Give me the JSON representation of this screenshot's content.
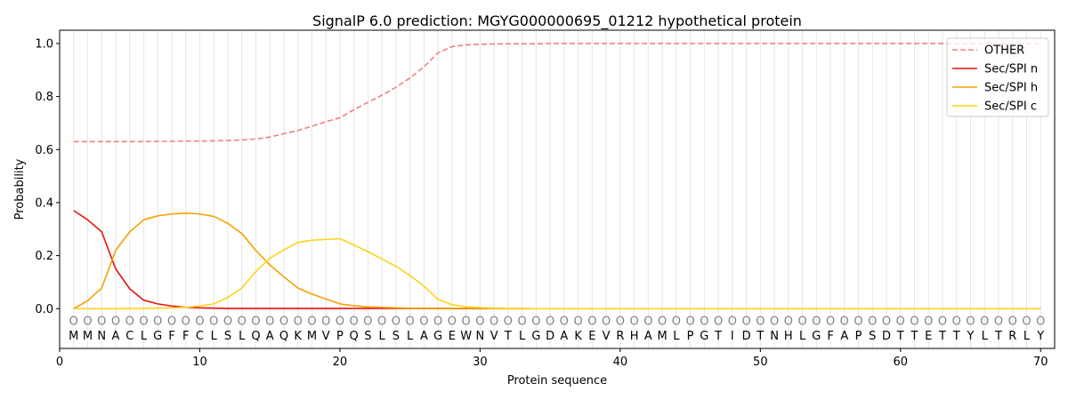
{
  "chart_data": {
    "type": "line",
    "title": "SignalP 6.0 prediction: MGYG000000695_01212 hypothetical protein",
    "xlabel": "Protein sequence",
    "ylabel": "Probability",
    "xlim": [
      0,
      71
    ],
    "ylim": [
      -0.15,
      1.05
    ],
    "x_ticks": [
      0,
      10,
      20,
      30,
      40,
      50,
      60,
      70
    ],
    "x_tick_labels": [
      "0",
      "10",
      "20",
      "30",
      "40",
      "50",
      "60",
      "70"
    ],
    "y_ticks": [
      0.0,
      0.2,
      0.4,
      0.6,
      0.8,
      1.0
    ],
    "y_tick_labels": [
      "0.0",
      "0.2",
      "0.4",
      "0.6",
      "0.8",
      "1.0"
    ],
    "legend_position": "top-right",
    "grid": "vertical lines at each residue position",
    "sequence": [
      "M",
      "M",
      "N",
      "A",
      "C",
      "L",
      "G",
      "F",
      "F",
      "C",
      "L",
      "S",
      "L",
      "Q",
      "A",
      "Q",
      "K",
      "M",
      "V",
      "P",
      "Q",
      "S",
      "L",
      "S",
      "L",
      "A",
      "G",
      "E",
      "W",
      "N",
      "V",
      "T",
      "L",
      "G",
      "D",
      "A",
      "K",
      "E",
      "V",
      "R",
      "H",
      "A",
      "M",
      "L",
      "P",
      "G",
      "T",
      "I",
      "D",
      "T",
      "N",
      "H",
      "L",
      "G",
      "F",
      "A",
      "P",
      "S",
      "D",
      "T",
      "T",
      "E",
      "T",
      "T",
      "Y",
      "L",
      "T",
      "R",
      "L",
      "Y"
    ],
    "markers": "O",
    "marker_y": -0.045,
    "series": [
      {
        "name": "OTHER",
        "color": "#f08080",
        "style": "dashed",
        "values": [
          0.63,
          0.63,
          0.63,
          0.63,
          0.63,
          0.63,
          0.631,
          0.631,
          0.632,
          0.632,
          0.633,
          0.634,
          0.636,
          0.64,
          0.647,
          0.66,
          0.672,
          0.688,
          0.705,
          0.72,
          0.75,
          0.778,
          0.805,
          0.835,
          0.87,
          0.912,
          0.965,
          0.988,
          0.995,
          0.997,
          0.998,
          0.999,
          0.999,
          0.999,
          1.0,
          1.0,
          1.0,
          1.0,
          1.0,
          1.0,
          1.0,
          1.0,
          1.0,
          1.0,
          1.0,
          1.0,
          1.0,
          1.0,
          1.0,
          1.0,
          1.0,
          1.0,
          1.0,
          1.0,
          1.0,
          1.0,
          1.0,
          1.0,
          1.0,
          1.0,
          1.0,
          1.0,
          1.0,
          1.0,
          1.0,
          1.0,
          1.0,
          1.0,
          1.0,
          1.0
        ]
      },
      {
        "name": "Sec/SPI n",
        "color": "#e8120c",
        "style": "solid",
        "values": [
          0.37,
          0.335,
          0.29,
          0.15,
          0.075,
          0.032,
          0.018,
          0.01,
          0.005,
          0.003,
          0.002,
          0.001,
          0.001,
          0.001,
          0.001,
          0.001,
          0.001,
          0.001,
          0.001,
          0.001,
          0.001,
          0.001,
          0.001,
          0.001,
          0.001,
          0.001,
          0.001,
          0.001,
          0.0,
          0.0,
          0.0,
          0.0,
          0.0,
          0.0,
          0.0,
          0.0,
          0.0,
          0.0,
          0.0,
          0.0,
          0.0,
          0.0,
          0.0,
          0.0,
          0.0,
          0.0,
          0.0,
          0.0,
          0.0,
          0.0,
          0.0,
          0.0,
          0.0,
          0.0,
          0.0,
          0.0,
          0.0,
          0.0,
          0.0,
          0.0,
          0.0,
          0.0,
          0.0,
          0.0,
          0.0,
          0.0,
          0.0,
          0.0,
          0.0,
          0.0
        ]
      },
      {
        "name": "Sec/SPI h",
        "color": "#f5a100",
        "style": "solid",
        "values": [
          0.0,
          0.03,
          0.078,
          0.22,
          0.29,
          0.335,
          0.35,
          0.357,
          0.36,
          0.357,
          0.348,
          0.322,
          0.283,
          0.22,
          0.165,
          0.12,
          0.078,
          0.055,
          0.037,
          0.018,
          0.011,
          0.007,
          0.005,
          0.003,
          0.002,
          0.002,
          0.001,
          0.001,
          0.001,
          0.001,
          0.0,
          0.0,
          0.0,
          0.0,
          0.0,
          0.0,
          0.0,
          0.0,
          0.0,
          0.0,
          0.0,
          0.0,
          0.0,
          0.0,
          0.0,
          0.0,
          0.0,
          0.0,
          0.0,
          0.0,
          0.0,
          0.0,
          0.0,
          0.0,
          0.0,
          0.0,
          0.0,
          0.0,
          0.0,
          0.0,
          0.0,
          0.0,
          0.0,
          0.0,
          0.0,
          0.0,
          0.0,
          0.0,
          0.0,
          0.0
        ]
      },
      {
        "name": "Sec/SPI c",
        "color": "#ffd21a",
        "style": "solid",
        "values": [
          0.0,
          0.0,
          0.0,
          0.0,
          0.001,
          0.001,
          0.002,
          0.003,
          0.005,
          0.01,
          0.018,
          0.042,
          0.078,
          0.14,
          0.19,
          0.222,
          0.25,
          0.258,
          0.261,
          0.264,
          0.24,
          0.215,
          0.187,
          0.16,
          0.125,
          0.085,
          0.035,
          0.015,
          0.007,
          0.004,
          0.002,
          0.001,
          0.001,
          0.0,
          0.0,
          0.0,
          0.0,
          0.0,
          0.0,
          0.0,
          0.0,
          0.0,
          0.0,
          0.0,
          0.0,
          0.0,
          0.0,
          0.0,
          0.0,
          0.0,
          0.0,
          0.0,
          0.0,
          0.0,
          0.0,
          0.0,
          0.0,
          0.0,
          0.0,
          0.0,
          0.0,
          0.0,
          0.0,
          0.0,
          0.0,
          0.0,
          0.0,
          0.0,
          0.0,
          0.0
        ]
      }
    ]
  }
}
